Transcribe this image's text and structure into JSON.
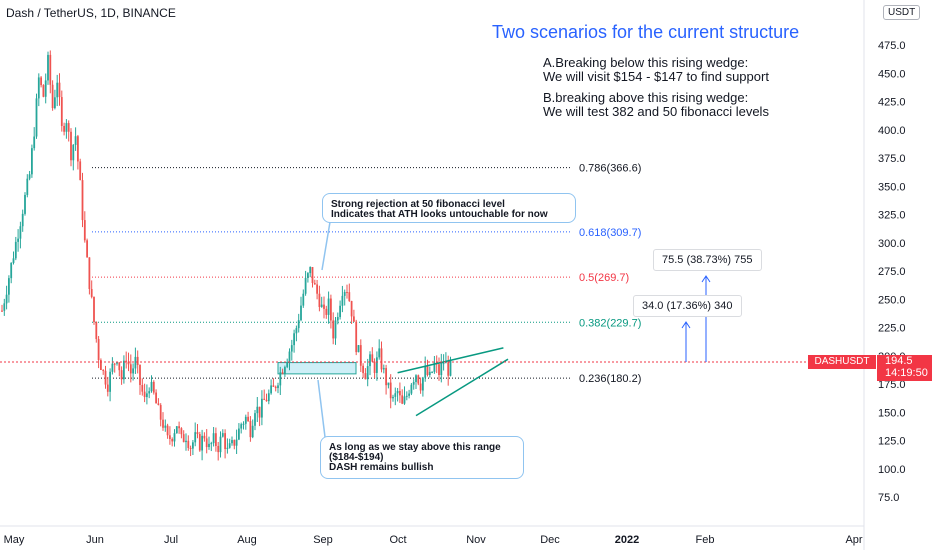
{
  "header": {
    "symbol_title": "Dash / TetherUS, 1D, BINANCE"
  },
  "headline": "Two scenarios for the current structure",
  "scenarios": [
    "A.Breaking below this rising wedge:\nWe will visit $154 - $147 to find support",
    "B.breaking above this rising wedge:\nWe will test 382 and 50 fibonacci levels"
  ],
  "callouts": {
    "top": "Strong rejection at 50 fibonacci level\nIndicates that ATH looks untouchable for now",
    "bottom": "As long as we stay above this range\n($184-$194)\nDASH remains bullish"
  },
  "measures": {
    "short": "34.0 (17.36%) 340",
    "long": "75.5 (38.73%) 755"
  },
  "price_axis": {
    "currency_button": "USDT"
  },
  "price_tag": {
    "symbol": "DASHUSDT",
    "price": "194.5",
    "countdown": "14:19:50"
  },
  "colors": {
    "up": "#26a69a",
    "down": "#ef5350",
    "fib_786": "#131722",
    "fib_618": "#2962ff",
    "fib_50": "#f23645",
    "fib_382": "#089981",
    "fib_236": "#131722",
    "callout_border": "#90c4f0",
    "range_box": "#c5ecf6"
  },
  "chart_data": {
    "type": "candlestick",
    "title": "Dash / TetherUS, 1D, BINANCE",
    "ylim": [
      50,
      500
    ],
    "y_ticks": [
      75.0,
      100.0,
      125.0,
      150.0,
      175.0,
      200.0,
      225.0,
      250.0,
      275.0,
      300.0,
      325.0,
      350.0,
      375.0,
      400.0,
      425.0,
      450.0,
      475.0
    ],
    "x_ticks": [
      "May",
      "Jun",
      "Jul",
      "Aug",
      "Sep",
      "Oct",
      "Nov",
      "Dec",
      "2022",
      "Feb",
      "Apr"
    ],
    "current_price": 194.5,
    "fib_levels": [
      {
        "label": "0.786(366.6)",
        "value": 366.6,
        "color": "#131722"
      },
      {
        "label": "0.618(309.7)",
        "value": 309.7,
        "color": "#2962ff"
      },
      {
        "label": "0.5(269.7)",
        "value": 269.7,
        "color": "#f23645"
      },
      {
        "label": "0.382(229.7)",
        "value": 229.7,
        "color": "#089981"
      },
      {
        "label": "0.236(180.2)",
        "value": 180.2,
        "color": "#131722"
      }
    ],
    "support_range": [
      184,
      194
    ],
    "price_path": [
      [
        0,
        240
      ],
      [
        3,
        270
      ],
      [
        6,
        300
      ],
      [
        9,
        330
      ],
      [
        12,
        360
      ],
      [
        14,
        400
      ],
      [
        16,
        445
      ],
      [
        18,
        430
      ],
      [
        20,
        460
      ],
      [
        22,
        420
      ],
      [
        24,
        445
      ],
      [
        26,
        400
      ],
      [
        28,
        410
      ],
      [
        30,
        380
      ],
      [
        32,
        395
      ],
      [
        34,
        350
      ],
      [
        36,
        300
      ],
      [
        38,
        265
      ],
      [
        40,
        230
      ],
      [
        42,
        200
      ],
      [
        44,
        185
      ],
      [
        46,
        175
      ],
      [
        48,
        190
      ],
      [
        50,
        200
      ],
      [
        52,
        180
      ],
      [
        54,
        200
      ],
      [
        56,
        185
      ],
      [
        58,
        195
      ],
      [
        60,
        175
      ],
      [
        62,
        160
      ],
      [
        64,
        175
      ],
      [
        66,
        165
      ],
      [
        68,
        150
      ],
      [
        70,
        140
      ],
      [
        72,
        125
      ],
      [
        74,
        130
      ],
      [
        76,
        140
      ],
      [
        78,
        125
      ],
      [
        80,
        130
      ],
      [
        82,
        120
      ],
      [
        84,
        127
      ],
      [
        86,
        122
      ],
      [
        88,
        130
      ],
      [
        90,
        118
      ],
      [
        92,
        125
      ],
      [
        94,
        120
      ],
      [
        96,
        130
      ],
      [
        98,
        115
      ],
      [
        100,
        120
      ],
      [
        102,
        128
      ],
      [
        104,
        140
      ],
      [
        106,
        145
      ],
      [
        108,
        135
      ],
      [
        110,
        155
      ],
      [
        112,
        150
      ],
      [
        114,
        160
      ],
      [
        116,
        165
      ],
      [
        118,
        170
      ],
      [
        120,
        180
      ],
      [
        122,
        190
      ],
      [
        124,
        200
      ],
      [
        126,
        210
      ],
      [
        128,
        225
      ],
      [
        130,
        245
      ],
      [
        132,
        265
      ],
      [
        134,
        275
      ],
      [
        136,
        260
      ],
      [
        138,
        250
      ],
      [
        140,
        235
      ],
      [
        142,
        245
      ],
      [
        144,
        220
      ],
      [
        146,
        240
      ],
      [
        148,
        260
      ],
      [
        150,
        260
      ],
      [
        152,
        240
      ],
      [
        154,
        210
      ],
      [
        156,
        195
      ],
      [
        158,
        185
      ],
      [
        160,
        195
      ],
      [
        162,
        190
      ],
      [
        164,
        200
      ],
      [
        166,
        185
      ],
      [
        168,
        170
      ],
      [
        170,
        160
      ],
      [
        172,
        168
      ],
      [
        174,
        155
      ],
      [
        176,
        165
      ],
      [
        178,
        178
      ],
      [
        180,
        185
      ],
      [
        182,
        175
      ],
      [
        184,
        186
      ],
      [
        186,
        180
      ],
      [
        188,
        192
      ],
      [
        190,
        185
      ],
      [
        192,
        195
      ],
      [
        194,
        188
      ],
      [
        196,
        192
      ]
    ],
    "wedge": {
      "upper": [
        [
          172,
          185
        ],
        [
          218,
          207
        ]
      ],
      "lower": [
        [
          180,
          147
        ],
        [
          220,
          197
        ]
      ]
    },
    "annotations": [
      "Two scenarios for the current structure",
      "Strong rejection at 50 fibonacci level",
      "As long as we stay above this range ($184-$194)"
    ]
  }
}
